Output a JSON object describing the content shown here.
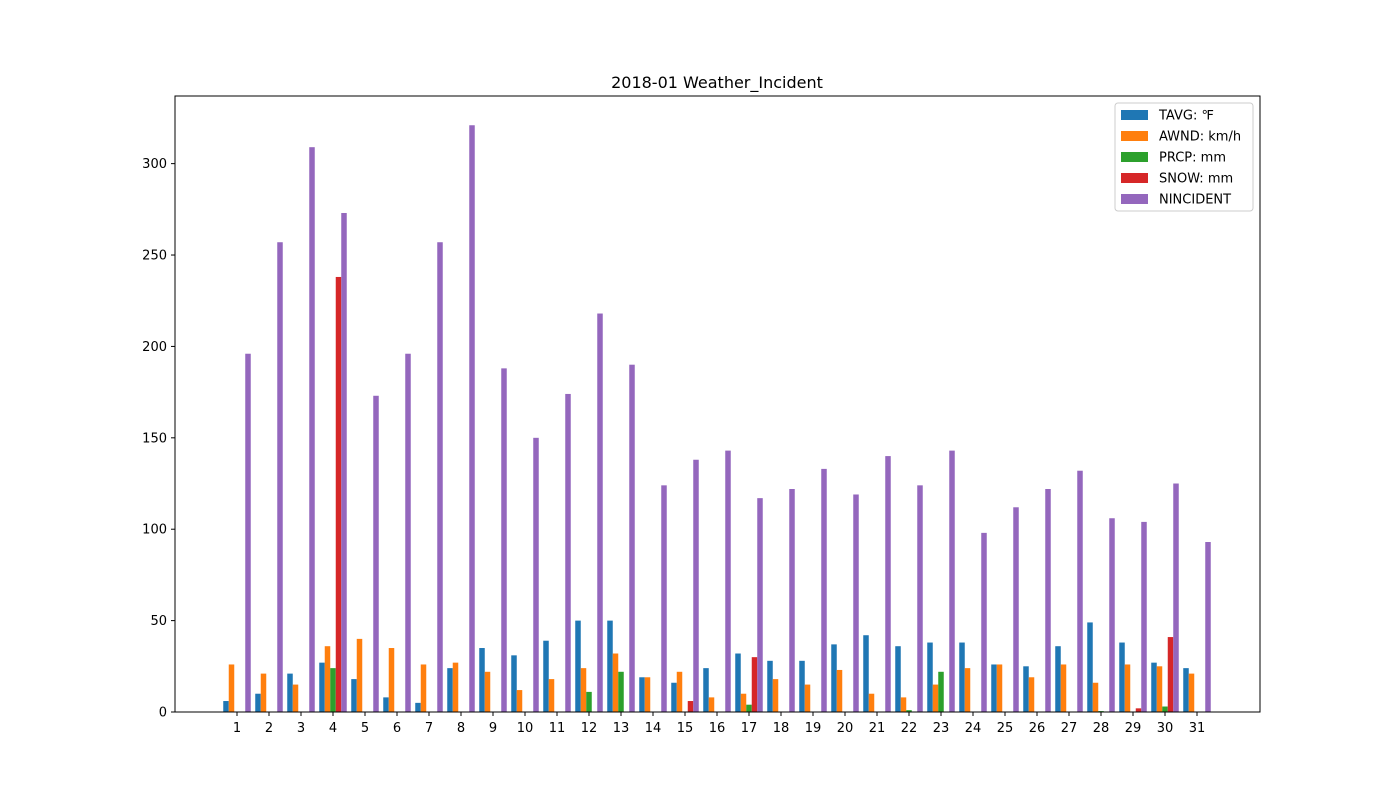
{
  "chart_data": {
    "type": "bar",
    "title": "2018-01 Weather_Incident",
    "xlabel": "",
    "ylabel": "",
    "ylim": [
      0,
      337
    ],
    "yticks": [
      0,
      50,
      100,
      150,
      200,
      250,
      300
    ],
    "grid": false,
    "legend_position": "top-right",
    "categories": [
      "1",
      "2",
      "3",
      "4",
      "5",
      "6",
      "7",
      "8",
      "9",
      "10",
      "11",
      "12",
      "13",
      "14",
      "15",
      "16",
      "17",
      "18",
      "19",
      "20",
      "21",
      "22",
      "23",
      "24",
      "25",
      "26",
      "27",
      "28",
      "29",
      "30",
      "31"
    ],
    "series": [
      {
        "name": "TAVG: ℉",
        "color": "#1f77b4",
        "values": [
          6,
          10,
          21,
          27,
          18,
          8,
          5,
          24,
          35,
          31,
          39,
          50,
          50,
          19,
          16,
          24,
          32,
          28,
          28,
          37,
          42,
          36,
          38,
          38,
          26,
          25,
          36,
          49,
          38,
          27,
          24
        ]
      },
      {
        "name": "AWND: km/h",
        "color": "#ff7f0e",
        "values": [
          26,
          21,
          15,
          36,
          40,
          35,
          26,
          27,
          22,
          12,
          18,
          24,
          32,
          19,
          22,
          8,
          10,
          18,
          15,
          23,
          10,
          8,
          15,
          24,
          26,
          19,
          26,
          16,
          26,
          25,
          21
        ]
      },
      {
        "name": "PRCP: mm",
        "color": "#2ca02c",
        "values": [
          0,
          0,
          0,
          24,
          0,
          0,
          0,
          0,
          0,
          0,
          0,
          11,
          22,
          0,
          0,
          0,
          4,
          0,
          0,
          0,
          0,
          1,
          22,
          0,
          0,
          0,
          0,
          0.5,
          0,
          3,
          0
        ]
      },
      {
        "name": "SNOW: mm",
        "color": "#d62728",
        "values": [
          0,
          0,
          0,
          238,
          0,
          0,
          0,
          0,
          0,
          0,
          0,
          0,
          0,
          0,
          6,
          0,
          30,
          0,
          0,
          0,
          0,
          0,
          0,
          0,
          0,
          0,
          0,
          0,
          2,
          41,
          0
        ]
      },
      {
        "name": "NINCIDENT",
        "color": "#9467bd",
        "values": [
          196,
          257,
          309,
          273,
          173,
          196,
          257,
          321,
          188,
          150,
          174,
          218,
          190,
          124,
          138,
          143,
          117,
          122,
          133,
          119,
          140,
          124,
          143,
          98,
          112,
          122,
          132,
          106,
          104,
          125,
          93
        ]
      }
    ]
  }
}
